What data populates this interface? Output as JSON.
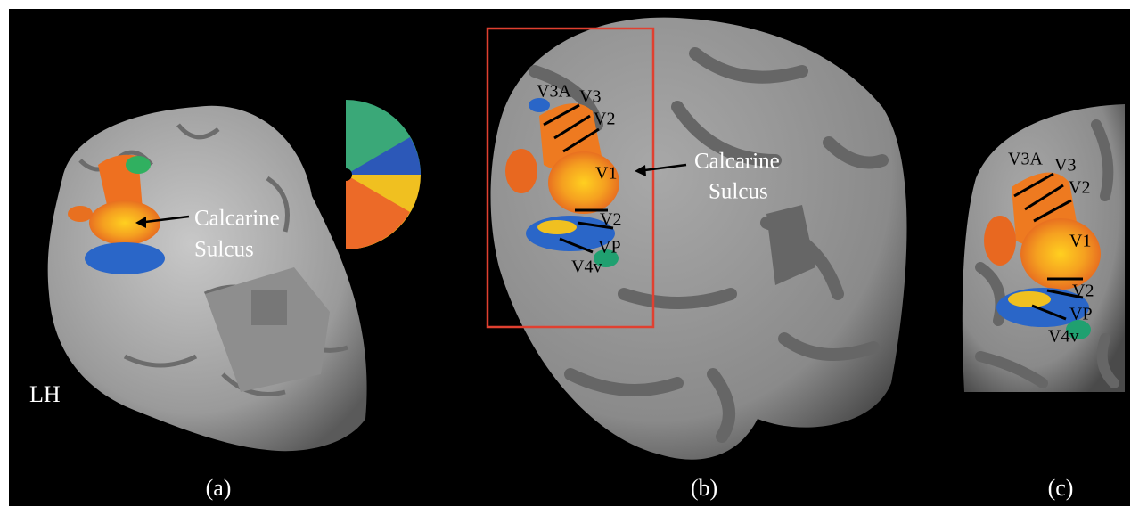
{
  "panels": [
    {
      "label": "(a)",
      "hemisphere": "LH",
      "annotation": [
        "Calcarine",
        "Sulcus"
      ]
    },
    {
      "label": "(b)",
      "annotation": [
        "Calcarine",
        "Sulcus"
      ],
      "areas": [
        "V3A",
        "V3",
        "V2",
        "V1",
        "V2",
        "VP",
        "V4v"
      ]
    },
    {
      "label": "(c)",
      "areas": [
        "V3A",
        "V3",
        "V2",
        "V1",
        "V2",
        "VP",
        "V4v"
      ]
    }
  ]
}
